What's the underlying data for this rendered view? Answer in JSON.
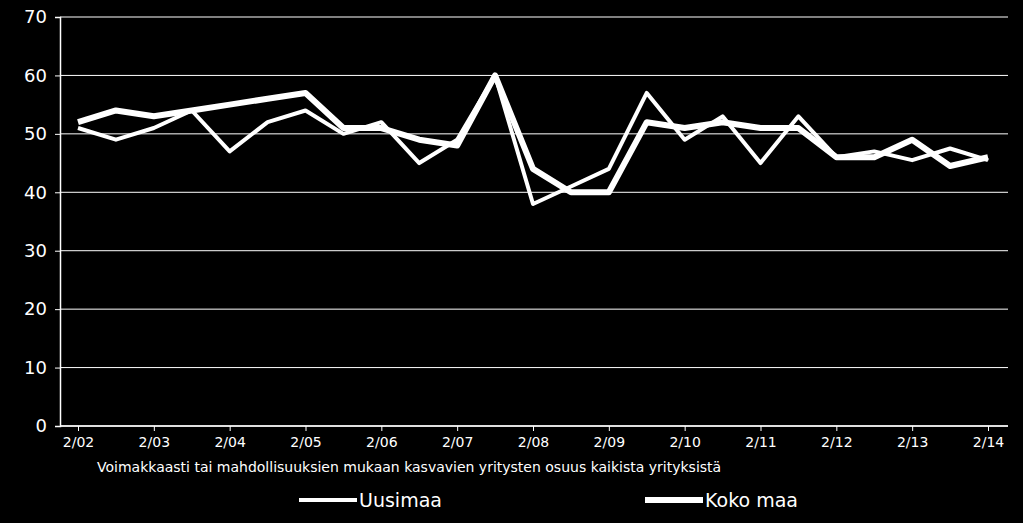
{
  "chart_data": {
    "type": "line",
    "x_label": "Voimakkaasti tai mahdollisuuksien mukaan kasvavien yritysten osuus kaikista yrityksistä",
    "categories": [
      "2/02",
      null,
      "2/03",
      null,
      "2/04",
      null,
      "2/05",
      null,
      "2/06",
      null,
      "2/07",
      null,
      "2/08",
      null,
      "2/09",
      null,
      "2/10",
      null,
      "2/11",
      null,
      "2/12",
      null,
      "2/13",
      null,
      "2/14"
    ],
    "series": [
      {
        "name": "Uusimaa",
        "color": "#ffffff",
        "values": [
          51,
          49,
          51,
          54,
          47,
          52,
          54,
          50,
          52,
          45,
          49,
          60,
          38,
          41,
          44,
          57,
          49,
          53,
          45,
          53,
          46,
          47,
          45.5,
          47.5,
          45.5
        ]
      },
      {
        "name": "Koko maa",
        "color": "#ffffff",
        "values": [
          52,
          54,
          53,
          54,
          55,
          56,
          57,
          51,
          51,
          49,
          48,
          60,
          44,
          40,
          40,
          52,
          51,
          52,
          51,
          51,
          46,
          46,
          49,
          44.5,
          46
        ]
      }
    ],
    "ylim": [
      0,
      70
    ],
    "yticks": [
      0,
      10,
      20,
      30,
      40,
      50,
      60,
      70
    ],
    "grid": true,
    "legend": "bottom"
  }
}
